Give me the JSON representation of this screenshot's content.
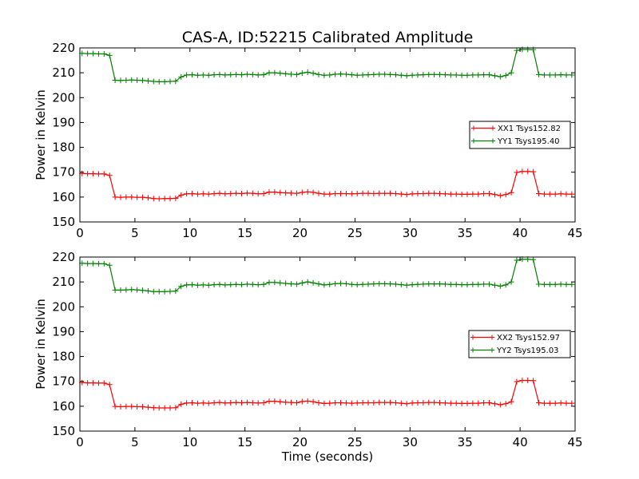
{
  "chart_data": [
    {
      "type": "line",
      "title": "CAS-A, ID:52215 Calibrated Amplitude",
      "xlabel": "",
      "ylabel": "Power in Kelvin",
      "xlim": [
        0,
        45
      ],
      "ylim": [
        150,
        220
      ],
      "xticks": [
        0,
        5,
        10,
        15,
        20,
        25,
        30,
        35,
        40,
        45
      ],
      "yticks": [
        150,
        160,
        170,
        180,
        190,
        200,
        210,
        220
      ],
      "legend_position": "center-right",
      "grid": false,
      "series": [
        {
          "name": "XX1 Tsys152.82",
          "color": "#ff0000",
          "marker": "plus",
          "x": [
            0.2,
            0.7,
            1.2,
            1.7,
            2.2,
            2.7,
            3.2,
            3.7,
            4.2,
            4.7,
            5.2,
            5.7,
            6.2,
            6.7,
            7.2,
            7.7,
            8.2,
            8.7,
            9.2,
            9.7,
            10.2,
            10.7,
            11.2,
            11.7,
            12.2,
            12.7,
            13.2,
            13.7,
            14.2,
            14.7,
            15.2,
            15.7,
            16.2,
            16.7,
            17.2,
            17.7,
            18.2,
            18.7,
            19.2,
            19.7,
            20.2,
            20.7,
            21.2,
            21.7,
            22.2,
            22.7,
            23.2,
            23.7,
            24.2,
            24.7,
            25.2,
            25.7,
            26.2,
            26.7,
            27.2,
            27.7,
            28.2,
            28.7,
            29.2,
            29.7,
            30.2,
            30.7,
            31.2,
            31.7,
            32.2,
            32.7,
            33.2,
            33.7,
            34.2,
            34.7,
            35.2,
            35.7,
            36.2,
            36.7,
            37.2,
            37.7,
            38.2,
            38.7,
            39.2,
            39.7,
            40.2,
            40.7,
            41.2,
            41.7,
            42.2,
            42.7,
            43.2,
            43.7,
            44.2,
            44.7
          ],
          "values": [
            169.5,
            169.4,
            169.4,
            169.3,
            169.3,
            168.7,
            160.0,
            159.9,
            160.0,
            160.0,
            159.9,
            159.9,
            159.7,
            159.4,
            159.3,
            159.4,
            159.4,
            159.5,
            160.8,
            161.3,
            161.4,
            161.2,
            161.3,
            161.2,
            161.4,
            161.5,
            161.3,
            161.4,
            161.5,
            161.4,
            161.6,
            161.5,
            161.3,
            161.4,
            162.0,
            162.0,
            161.8,
            161.7,
            161.6,
            161.5,
            161.9,
            162.1,
            161.9,
            161.5,
            161.2,
            161.2,
            161.4,
            161.4,
            161.4,
            161.3,
            161.4,
            161.5,
            161.5,
            161.4,
            161.5,
            161.5,
            161.5,
            161.4,
            161.2,
            161.0,
            161.3,
            161.4,
            161.4,
            161.5,
            161.5,
            161.4,
            161.3,
            161.2,
            161.2,
            161.1,
            161.1,
            161.2,
            161.2,
            161.4,
            161.4,
            161.0,
            160.6,
            161.0,
            161.8,
            169.9,
            170.3,
            170.3,
            170.2,
            161.4,
            161.2,
            161.2,
            161.2,
            161.3,
            161.2,
            161.2
          ]
        },
        {
          "name": "YY1 Tsys195.40",
          "color": "#008000",
          "marker": "plus",
          "x": [
            0.2,
            0.7,
            1.2,
            1.7,
            2.2,
            2.7,
            3.2,
            3.7,
            4.2,
            4.7,
            5.2,
            5.7,
            6.2,
            6.7,
            7.2,
            7.7,
            8.2,
            8.7,
            9.2,
            9.7,
            10.2,
            10.7,
            11.2,
            11.7,
            12.2,
            12.7,
            13.2,
            13.7,
            14.2,
            14.7,
            15.2,
            15.7,
            16.2,
            16.7,
            17.2,
            17.7,
            18.2,
            18.7,
            19.2,
            19.7,
            20.2,
            20.7,
            21.2,
            21.7,
            22.2,
            22.7,
            23.2,
            23.7,
            24.2,
            24.7,
            25.2,
            25.7,
            26.2,
            26.7,
            27.2,
            27.7,
            28.2,
            28.7,
            29.2,
            29.7,
            30.2,
            30.7,
            31.2,
            31.7,
            32.2,
            32.7,
            33.2,
            33.7,
            34.2,
            34.7,
            35.2,
            35.7,
            36.2,
            36.7,
            37.2,
            37.7,
            38.2,
            38.7,
            39.2,
            39.7,
            40.2,
            40.7,
            41.2,
            41.7,
            42.2,
            42.7,
            43.2,
            43.7,
            44.2,
            44.7
          ],
          "values": [
            217.8,
            217.7,
            217.7,
            217.6,
            217.6,
            217.0,
            207.0,
            206.9,
            207.0,
            207.1,
            207.0,
            206.9,
            206.7,
            206.5,
            206.4,
            206.4,
            206.5,
            206.6,
            208.3,
            209.1,
            209.2,
            209.0,
            209.1,
            209.0,
            209.2,
            209.3,
            209.1,
            209.2,
            209.3,
            209.2,
            209.4,
            209.3,
            209.1,
            209.2,
            210.0,
            210.0,
            209.8,
            209.6,
            209.4,
            209.3,
            209.9,
            210.2,
            209.8,
            209.3,
            209.0,
            209.1,
            209.4,
            209.5,
            209.4,
            209.2,
            209.0,
            209.1,
            209.2,
            209.3,
            209.4,
            209.4,
            209.3,
            209.2,
            209.0,
            208.8,
            209.0,
            209.1,
            209.2,
            209.3,
            209.3,
            209.3,
            209.2,
            209.1,
            209.1,
            209.0,
            209.0,
            209.1,
            209.1,
            209.2,
            209.2,
            208.8,
            208.4,
            208.9,
            210.0,
            219.0,
            219.4,
            219.4,
            219.3,
            209.3,
            209.1,
            209.1,
            209.1,
            209.2,
            209.1,
            209.1
          ]
        }
      ]
    },
    {
      "type": "line",
      "title": "",
      "xlabel": "Time (seconds)",
      "ylabel": "Power in Kelvin",
      "xlim": [
        0,
        45
      ],
      "ylim": [
        150,
        220
      ],
      "xticks": [
        0,
        5,
        10,
        15,
        20,
        25,
        30,
        35,
        40,
        45
      ],
      "yticks": [
        150,
        160,
        170,
        180,
        190,
        200,
        210,
        220
      ],
      "legend_position": "center-right",
      "grid": false,
      "series": [
        {
          "name": "XX2 Tsys152.97",
          "color": "#ff0000",
          "marker": "plus",
          "x": [
            0.2,
            0.7,
            1.2,
            1.7,
            2.2,
            2.7,
            3.2,
            3.7,
            4.2,
            4.7,
            5.2,
            5.7,
            6.2,
            6.7,
            7.2,
            7.7,
            8.2,
            8.7,
            9.2,
            9.7,
            10.2,
            10.7,
            11.2,
            11.7,
            12.2,
            12.7,
            13.2,
            13.7,
            14.2,
            14.7,
            15.2,
            15.7,
            16.2,
            16.7,
            17.2,
            17.7,
            18.2,
            18.7,
            19.2,
            19.7,
            20.2,
            20.7,
            21.2,
            21.7,
            22.2,
            22.7,
            23.2,
            23.7,
            24.2,
            24.7,
            25.2,
            25.7,
            26.2,
            26.7,
            27.2,
            27.7,
            28.2,
            28.7,
            29.2,
            29.7,
            30.2,
            30.7,
            31.2,
            31.7,
            32.2,
            32.7,
            33.2,
            33.7,
            34.2,
            34.7,
            35.2,
            35.7,
            36.2,
            36.7,
            37.2,
            37.7,
            38.2,
            38.7,
            39.2,
            39.7,
            40.2,
            40.7,
            41.2,
            41.7,
            42.2,
            42.7,
            43.2,
            43.7,
            44.2,
            44.7
          ],
          "values": [
            169.5,
            169.4,
            169.4,
            169.3,
            169.3,
            168.7,
            159.9,
            159.8,
            159.9,
            159.9,
            159.8,
            159.8,
            159.6,
            159.4,
            159.3,
            159.3,
            159.3,
            159.4,
            160.8,
            161.3,
            161.4,
            161.2,
            161.3,
            161.2,
            161.4,
            161.5,
            161.3,
            161.4,
            161.5,
            161.4,
            161.5,
            161.4,
            161.3,
            161.4,
            162.0,
            162.0,
            161.8,
            161.6,
            161.5,
            161.4,
            161.9,
            162.1,
            161.8,
            161.4,
            161.1,
            161.2,
            161.4,
            161.4,
            161.3,
            161.2,
            161.3,
            161.4,
            161.4,
            161.4,
            161.5,
            161.5,
            161.5,
            161.4,
            161.2,
            161.0,
            161.3,
            161.4,
            161.4,
            161.5,
            161.5,
            161.4,
            161.3,
            161.2,
            161.2,
            161.1,
            161.1,
            161.2,
            161.2,
            161.4,
            161.4,
            161.0,
            160.6,
            161.0,
            161.8,
            169.9,
            170.4,
            170.4,
            170.3,
            161.4,
            161.2,
            161.2,
            161.2,
            161.3,
            161.2,
            161.2
          ]
        },
        {
          "name": "YY2 Tsys195.03",
          "color": "#008000",
          "marker": "plus",
          "x": [
            0.2,
            0.7,
            1.2,
            1.7,
            2.2,
            2.7,
            3.2,
            3.7,
            4.2,
            4.7,
            5.2,
            5.7,
            6.2,
            6.7,
            7.2,
            7.7,
            8.2,
            8.7,
            9.2,
            9.7,
            10.2,
            10.7,
            11.2,
            11.7,
            12.2,
            12.7,
            13.2,
            13.7,
            14.2,
            14.7,
            15.2,
            15.7,
            16.2,
            16.7,
            17.2,
            17.7,
            18.2,
            18.7,
            19.2,
            19.7,
            20.2,
            20.7,
            21.2,
            21.7,
            22.2,
            22.7,
            23.2,
            23.7,
            24.2,
            24.7,
            25.2,
            25.7,
            26.2,
            26.7,
            27.2,
            27.7,
            28.2,
            28.7,
            29.2,
            29.7,
            30.2,
            30.7,
            31.2,
            31.7,
            32.2,
            32.7,
            33.2,
            33.7,
            34.2,
            34.7,
            35.2,
            35.7,
            36.2,
            36.7,
            37.2,
            37.7,
            38.2,
            38.7,
            39.2,
            39.7,
            40.2,
            40.7,
            41.2,
            41.7,
            42.2,
            42.7,
            43.2,
            43.7,
            44.2,
            44.7
          ],
          "values": [
            217.5,
            217.4,
            217.4,
            217.3,
            217.3,
            216.7,
            206.7,
            206.7,
            206.8,
            206.9,
            206.8,
            206.6,
            206.4,
            206.1,
            206.1,
            206.1,
            206.2,
            206.3,
            208.2,
            208.8,
            208.9,
            208.7,
            208.8,
            208.7,
            208.9,
            209.0,
            208.8,
            208.9,
            209.0,
            208.9,
            209.1,
            209.0,
            208.9,
            209.0,
            209.8,
            209.8,
            209.6,
            209.4,
            209.2,
            209.1,
            209.6,
            210.0,
            209.6,
            209.2,
            208.8,
            209.0,
            209.3,
            209.4,
            209.3,
            209.0,
            208.9,
            209.0,
            209.1,
            209.2,
            209.3,
            209.3,
            209.2,
            209.1,
            208.9,
            208.7,
            208.9,
            209.0,
            209.1,
            209.2,
            209.2,
            209.2,
            209.1,
            209.0,
            209.0,
            208.9,
            208.9,
            209.0,
            209.0,
            209.1,
            209.1,
            208.7,
            208.3,
            208.8,
            210.0,
            218.7,
            219.1,
            219.1,
            219.0,
            209.1,
            209.0,
            209.0,
            209.0,
            209.1,
            209.0,
            209.0
          ]
        }
      ]
    }
  ]
}
